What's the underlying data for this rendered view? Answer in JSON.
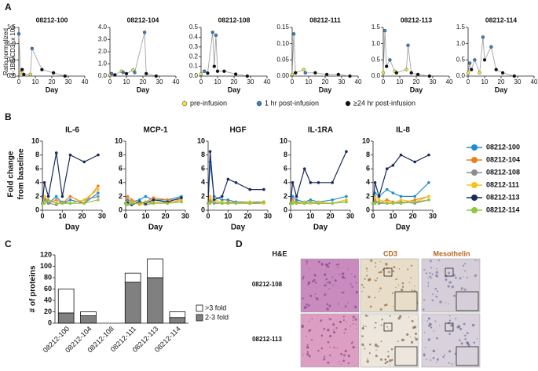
{
  "panel_labels": [
    "A",
    "B",
    "C",
    "D"
  ],
  "a_y_label": [
    "Ratio normalized",
    "(4-1BB/CD3) x 100"
  ],
  "a_legend": [
    {
      "name": "pre-infusion",
      "color": "#f2e63a"
    },
    {
      "name": "1 hr post-infusion",
      "color": "#3a7fc1"
    },
    {
      "name": "≥24 hr post-infusion",
      "color": "#111111"
    }
  ],
  "b_y_label": [
    "Fold change",
    "from baseline"
  ],
  "b_legend": [
    {
      "name": "08212-100",
      "color": "#1f8ecf"
    },
    {
      "name": "08212-104",
      "color": "#f07f1a"
    },
    {
      "name": "08212-108",
      "color": "#8c8c8c"
    },
    {
      "name": "08212-111",
      "color": "#f9c21a"
    },
    {
      "name": "08212-113",
      "color": "#1a2a5e"
    },
    {
      "name": "08212-114",
      "color": "#8dc63f"
    }
  ],
  "panel_d": {
    "columns": [
      "H&E",
      "CD3",
      "Mesothelin"
    ],
    "rows": [
      "08212-108",
      "08212-113"
    ]
  },
  "chart_data": [
    {
      "type": "line",
      "title": "08212-100",
      "x_label": "Day",
      "x": [
        0,
        1,
        2,
        3,
        7,
        8,
        14,
        21,
        28
      ],
      "values": [
        1.3,
        0.1,
        0.2,
        0.05,
        0.05,
        0.85,
        0.2,
        0.1,
        0.0
      ],
      "marker_groups": [
        1,
        0,
        2,
        2,
        0,
        1,
        2,
        2,
        2
      ],
      "xlim": [
        0,
        40
      ],
      "xticks": [
        0,
        10,
        20,
        30,
        40
      ],
      "ylim": [
        0,
        1.5
      ],
      "yticks": [
        {
          "value": 0,
          "label": "0.0"
        },
        0.5,
        {
          "value": 1,
          "label": "1.0"
        },
        1.5
      ]
    },
    {
      "type": "line",
      "title": "08212-104",
      "x_label": "Day",
      "x": [
        0,
        1,
        3,
        7,
        8,
        10,
        14,
        15,
        21,
        22,
        28
      ],
      "values": [
        0.1,
        0.2,
        0.1,
        0.4,
        0.3,
        0.2,
        0.5,
        0.3,
        3.6,
        0.2,
        0.0
      ],
      "marker_groups": [
        0,
        1,
        2,
        0,
        1,
        2,
        0,
        1,
        1,
        2,
        2
      ],
      "xlim": [
        0,
        40
      ],
      "xticks": [
        0,
        10,
        20,
        30,
        40
      ],
      "ylim": [
        0,
        4
      ],
      "yticks": [
        {
          "value": 0,
          "label": "0.0"
        },
        {
          "value": 1,
          "label": "1.0"
        },
        {
          "value": 2,
          "label": "2.0"
        },
        {
          "value": 3,
          "label": "3.0"
        },
        {
          "value": 4,
          "label": "4.0"
        }
      ]
    },
    {
      "type": "line",
      "title": "08212-108",
      "x_label": "Day",
      "x": [
        0,
        2,
        4,
        7,
        8,
        9,
        10,
        14,
        21,
        28
      ],
      "values": [
        0.02,
        0.05,
        0.03,
        0.45,
        0.1,
        0.42,
        0.05,
        0.05,
        0.02,
        0.0
      ],
      "marker_groups": [
        0,
        1,
        2,
        1,
        2,
        1,
        2,
        2,
        2,
        2
      ],
      "xlim": [
        0,
        40
      ],
      "xticks": [
        0,
        10,
        20,
        30,
        40
      ],
      "ylim": [
        0,
        0.5
      ],
      "yticks": [
        {
          "value": 0,
          "label": "0.0"
        },
        0.1,
        0.2,
        0.3,
        0.4,
        0.5
      ]
    },
    {
      "type": "line",
      "title": "08212-111",
      "x_label": "Day",
      "x": [
        0,
        1,
        2,
        7,
        8,
        14,
        21,
        28,
        35
      ],
      "values": [
        0.005,
        0.13,
        0.01,
        0.02,
        0.01,
        0.01,
        0.005,
        0.005,
        0.0
      ],
      "marker_groups": [
        0,
        1,
        2,
        0,
        1,
        2,
        2,
        2,
        2
      ],
      "xlim": [
        0,
        40
      ],
      "xticks": [
        0,
        10,
        20,
        30,
        40
      ],
      "ylim": [
        0,
        0.15
      ],
      "yticks": [
        {
          "value": 0,
          "label": "0.00"
        },
        0.05,
        {
          "value": 0.1,
          "label": "0.10"
        },
        0.15
      ]
    },
    {
      "type": "line",
      "title": "08212-113",
      "x_label": "Day",
      "x": [
        0,
        1,
        2,
        4,
        7,
        8,
        14,
        15,
        17,
        21,
        28
      ],
      "values": [
        0.1,
        1.4,
        0.3,
        0.5,
        0.15,
        0.1,
        0.2,
        0.95,
        0.1,
        0.05,
        0.0
      ],
      "marker_groups": [
        0,
        1,
        2,
        1,
        0,
        2,
        0,
        1,
        2,
        2,
        2
      ],
      "xlim": [
        0,
        40
      ],
      "xticks": [
        0,
        10,
        20,
        30,
        40
      ],
      "ylim": [
        0,
        1.5
      ],
      "yticks": [
        {
          "value": 0,
          "label": "0.0"
        },
        0.5,
        {
          "value": 1,
          "label": "1.0"
        },
        1.5
      ]
    },
    {
      "type": "line",
      "title": "08212-114",
      "x_label": "Day",
      "x": [
        0,
        1,
        2,
        4,
        7,
        9,
        10,
        14,
        17,
        21,
        28
      ],
      "values": [
        0.1,
        0.4,
        0.2,
        0.5,
        0.1,
        1.2,
        0.5,
        0.9,
        0.2,
        0.1,
        0.0
      ],
      "marker_groups": [
        0,
        1,
        2,
        1,
        0,
        1,
        2,
        1,
        2,
        2,
        2
      ],
      "xlim": [
        0,
        40
      ],
      "xticks": [
        0,
        10,
        20,
        30,
        40
      ],
      "ylim": [
        0,
        1.5
      ],
      "yticks": [
        {
          "value": 0,
          "label": "0.0"
        },
        0.5,
        {
          "value": 1,
          "label": "1.0"
        },
        1.5
      ]
    },
    {
      "type": "line",
      "title": "IL-6",
      "x_label": "Day",
      "x": [
        0,
        1,
        3,
        7,
        10,
        14,
        21,
        28
      ],
      "series": [
        {
          "values": [
            2,
            1.5,
            1,
            2,
            1,
            1.5,
            1,
            2.5
          ]
        },
        {
          "values": [
            1,
            2,
            1,
            1.5,
            1,
            2,
            1,
            3.5
          ]
        },
        {
          "values": [
            1,
            1.5,
            1,
            0.8,
            1.2,
            1,
            1.5,
            2
          ]
        },
        {
          "values": [
            1,
            2,
            1.5,
            1,
            1,
            1,
            1.5,
            3
          ]
        },
        {
          "values": [
            1,
            4,
            2,
            8.3,
            2,
            8,
            7,
            8
          ]
        },
        {
          "values": [
            1,
            1,
            1.5,
            1,
            1,
            1,
            1,
            1.5
          ]
        }
      ],
      "xlim": [
        0,
        30
      ],
      "xticks": [
        0,
        10,
        20,
        30
      ],
      "ylim": [
        0,
        10
      ],
      "yticks": [
        0,
        2,
        4,
        6,
        8,
        10
      ]
    },
    {
      "type": "line",
      "title": "MCP-1",
      "x_label": "Day",
      "x": [
        0,
        1,
        3,
        7,
        10,
        14,
        21,
        28
      ],
      "series": [
        {
          "values": [
            1,
            1.5,
            1.2,
            1.5,
            2,
            1.5,
            1.5,
            2
          ]
        },
        {
          "values": [
            1,
            2,
            1.5,
            1,
            1.2,
            1.8,
            1.5,
            1.5
          ]
        },
        {
          "values": [
            1,
            1.2,
            1,
            1,
            0.8,
            1,
            1.2,
            1.2
          ]
        },
        {
          "values": [
            1,
            1,
            1.2,
            0.8,
            1,
            1.2,
            1,
            1.5
          ]
        },
        {
          "values": [
            1,
            1,
            0.8,
            1.2,
            1,
            1.5,
            1.2,
            1.8
          ]
        },
        {
          "values": [
            1,
            0.8,
            1,
            1,
            1.2,
            1,
            1,
            1.2
          ]
        }
      ],
      "xlim": [
        0,
        30
      ],
      "xticks": [
        0,
        10,
        20,
        30
      ],
      "ylim": [
        0,
        10
      ],
      "yticks": [
        0,
        2,
        4,
        6,
        8,
        10
      ]
    },
    {
      "type": "line",
      "title": "HGF",
      "x_label": "Day",
      "x": [
        0,
        1,
        3,
        7,
        10,
        14,
        21,
        28
      ],
      "series": [
        {
          "values": [
            1,
            7,
            2,
            1.5,
            1.5,
            1.2,
            1.2,
            1.2
          ]
        },
        {
          "values": [
            1,
            1.5,
            1.2,
            1,
            1.2,
            1,
            1,
            1
          ]
        },
        {
          "values": [
            1,
            1.2,
            1,
            1,
            1,
            1.2,
            1,
            1
          ]
        },
        {
          "values": [
            1,
            2,
            1.5,
            1.2,
            1,
            1,
            1.2,
            1
          ]
        },
        {
          "values": [
            1,
            8.5,
            1.5,
            2,
            4.5,
            4,
            3,
            3
          ]
        },
        {
          "values": [
            1,
            1,
            1.2,
            1,
            1,
            1,
            1,
            1.2
          ]
        }
      ],
      "xlim": [
        0,
        30
      ],
      "xticks": [
        0,
        10,
        20,
        30
      ],
      "ylim": [
        0,
        10
      ],
      "yticks": [
        0,
        2,
        4,
        6,
        8,
        10
      ]
    },
    {
      "type": "line",
      "title": "IL-1RA",
      "x_label": "Day",
      "x": [
        0,
        1,
        3,
        7,
        10,
        14,
        21,
        28
      ],
      "series": [
        {
          "values": [
            1,
            2,
            1.5,
            1.2,
            1.5,
            1.2,
            1.5,
            2
          ]
        },
        {
          "values": [
            1,
            1.5,
            1,
            1,
            1.2,
            1,
            1,
            1.5
          ]
        },
        {
          "values": [
            1,
            1,
            1.2,
            1,
            1,
            1,
            1,
            1.2
          ]
        },
        {
          "values": [
            1,
            1.2,
            1,
            1.2,
            1,
            1.2,
            1,
            1.5
          ]
        },
        {
          "values": [
            1,
            4,
            2,
            6,
            4,
            4,
            4,
            8.5
          ]
        },
        {
          "values": [
            1,
            1,
            1,
            1,
            1.2,
            1,
            1,
            1.2
          ]
        }
      ],
      "xlim": [
        0,
        30
      ],
      "xticks": [
        0,
        10,
        20,
        30
      ],
      "ylim": [
        0,
        10
      ],
      "yticks": [
        0,
        2,
        4,
        6,
        8,
        10
      ]
    },
    {
      "type": "line",
      "title": "IL-8",
      "x_label": "Day",
      "x": [
        0,
        1,
        3,
        7,
        10,
        14,
        21,
        28
      ],
      "series": [
        {
          "values": [
            1,
            2.5,
            2,
            3,
            2.5,
            2,
            2,
            4
          ]
        },
        {
          "values": [
            1,
            1.5,
            1,
            1.5,
            1.2,
            1,
            1.5,
            2
          ]
        },
        {
          "values": [
            1,
            1.2,
            1,
            1,
            1,
            1.2,
            1,
            1.5
          ]
        },
        {
          "values": [
            1,
            2,
            1.5,
            1.2,
            1,
            1.5,
            1.2,
            2
          ]
        },
        {
          "values": [
            1,
            4,
            2,
            6,
            6.5,
            8,
            7,
            8
          ]
        },
        {
          "values": [
            1,
            1,
            1.2,
            1,
            1,
            1,
            1.2,
            1.5
          ]
        }
      ],
      "xlim": [
        0,
        30
      ],
      "xticks": [
        0,
        10,
        20,
        30
      ],
      "ylim": [
        0,
        10
      ],
      "yticks": [
        0,
        2,
        4,
        6,
        8,
        10
      ]
    },
    {
      "type": "bar",
      "stacked": true,
      "y_label": "# of proteins",
      "categories": [
        "08212-100",
        "08212-104",
        "08212-108",
        "08212-111",
        "08212-113",
        "08212-114"
      ],
      "series": [
        {
          "name": "2-3 fold",
          "color": "#808080",
          "values": [
            18,
            13,
            0,
            72,
            80,
            10
          ]
        },
        {
          "name": ">3 fold",
          "color": "#ffffff",
          "values": [
            42,
            7,
            0,
            16,
            33,
            10
          ]
        }
      ],
      "ylim": [
        0,
        120
      ],
      "yticks": [
        0,
        20,
        40,
        60,
        80,
        100,
        120
      ]
    }
  ]
}
